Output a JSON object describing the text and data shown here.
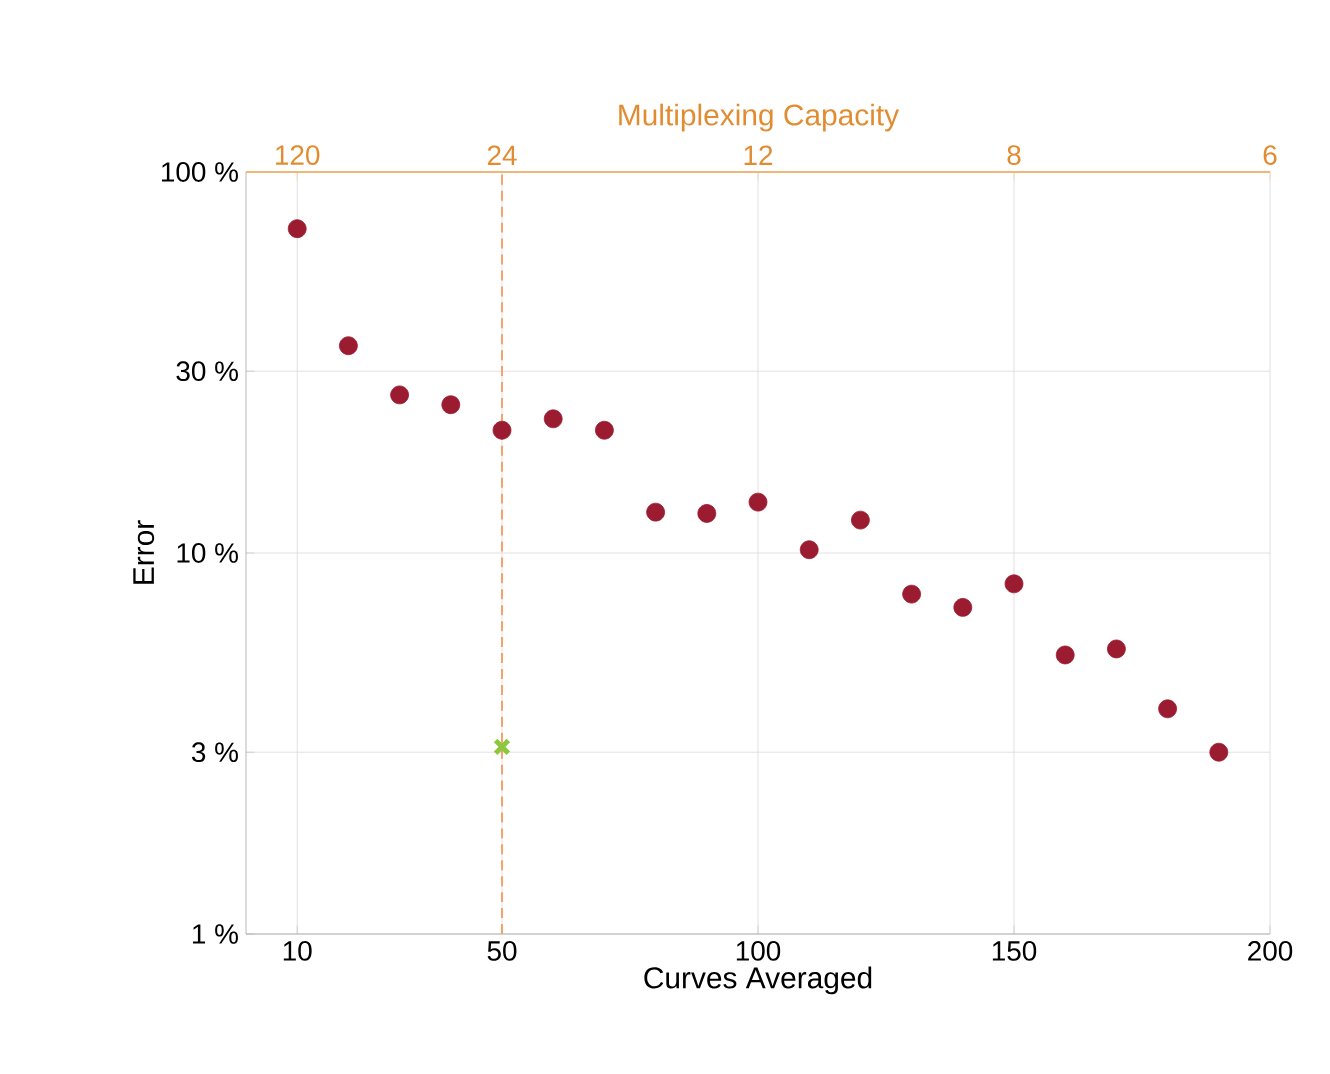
{
  "chart_data": {
    "type": "scatter",
    "xlabel": "Curves Averaged",
    "ylabel": "Error",
    "x2label": "Multiplexing Capacity",
    "xlim": [
      0,
      200
    ],
    "xticks": [
      10,
      50,
      100,
      150,
      200
    ],
    "annotations": [
      "120",
      "24",
      "12",
      "8",
      "6"
    ],
    "ylim": [
      1,
      100
    ],
    "yticks": [
      {
        "value": 1,
        "label": "1 %"
      },
      {
        "value": 3,
        "label": "3 %"
      },
      {
        "value": 10,
        "label": "10 %"
      },
      {
        "value": 30,
        "label": "30 %"
      },
      {
        "value": 100,
        "label": "100 %"
      }
    ],
    "log": "y",
    "grid": true,
    "marker": "circle",
    "ref_lines": [
      {
        "axis": "x",
        "value": 50,
        "color": "#f4a46a",
        "line_style": "dashed"
      }
    ],
    "series": [
      {
        "color": "#9b1b30",
        "x": [
          10,
          20,
          30,
          40,
          50,
          60,
          70,
          80,
          90,
          100,
          110,
          120,
          130,
          140,
          150,
          160,
          170,
          180,
          190
        ],
        "values": [
          71,
          35,
          26,
          24.5,
          21,
          22.5,
          21,
          12.8,
          12.7,
          13.6,
          10.2,
          12.2,
          7.8,
          7.2,
          8.3,
          5.4,
          5.6,
          3.9,
          3.0
        ]
      },
      {
        "color": "#8dc63f",
        "marker": "cross",
        "x": [
          50
        ],
        "values": [
          3.1
        ]
      }
    ]
  }
}
